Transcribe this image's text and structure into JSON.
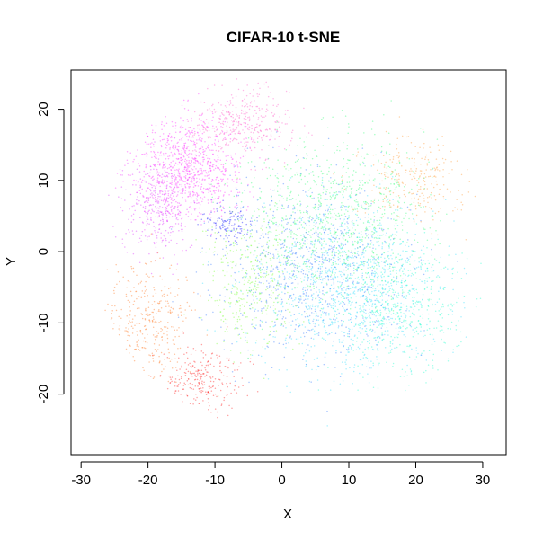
{
  "chart_data": {
    "type": "scatter",
    "title": "CIFAR-10 t-SNE",
    "xlabel": "X",
    "ylabel": "Y",
    "xlim": [
      -31.5,
      33.5
    ],
    "ylim": [
      -28.5,
      25.5
    ],
    "x_ticks": [
      -30,
      -20,
      -10,
      0,
      10,
      20,
      30
    ],
    "y_ticks": [
      -20,
      -10,
      0,
      10,
      20
    ],
    "x_tick_labels": [
      "-30",
      "-20",
      "-10",
      "0",
      "10",
      "20",
      "30"
    ],
    "y_tick_labels": [
      "-20",
      "-10",
      "0",
      "10",
      "20"
    ],
    "grid": false,
    "legend": "none",
    "clusters": [
      {
        "color": "#ff40ff",
        "center": [
          -14,
          12
        ],
        "spread": [
          7,
          6
        ],
        "count": 900
      },
      {
        "color": "#ff66cc",
        "center": [
          -6,
          18
        ],
        "spread": [
          6,
          4
        ],
        "count": 350
      },
      {
        "color": "#e040ff",
        "center": [
          -18,
          6
        ],
        "spread": [
          5,
          5
        ],
        "count": 350
      },
      {
        "color": "#40e0ff",
        "center": [
          10,
          -5
        ],
        "spread": [
          11,
          10
        ],
        "count": 1100
      },
      {
        "color": "#40ff80",
        "center": [
          8,
          5
        ],
        "spread": [
          11,
          9
        ],
        "count": 900
      },
      {
        "color": "#4080ff",
        "center": [
          4,
          -2
        ],
        "spread": [
          12,
          10
        ],
        "count": 800
      },
      {
        "color": "#30ffd0",
        "center": [
          18,
          -8
        ],
        "spread": [
          8,
          8
        ],
        "count": 500
      },
      {
        "color": "#ff8030",
        "center": [
          -20,
          -10
        ],
        "spread": [
          5,
          7
        ],
        "count": 350
      },
      {
        "color": "#ff3030",
        "center": [
          -12,
          -18
        ],
        "spread": [
          5,
          4
        ],
        "count": 260
      },
      {
        "color": "#80ff40",
        "center": [
          -5,
          -5
        ],
        "spread": [
          6,
          8
        ],
        "count": 350
      },
      {
        "color": "#ffa040",
        "center": [
          20,
          10
        ],
        "spread": [
          7,
          5
        ],
        "count": 250
      },
      {
        "color": "#2020ff",
        "center": [
          -8,
          4
        ],
        "spread": [
          3,
          2
        ],
        "count": 120
      }
    ],
    "point_opacity": 0.45,
    "point_radius": 0.75
  }
}
